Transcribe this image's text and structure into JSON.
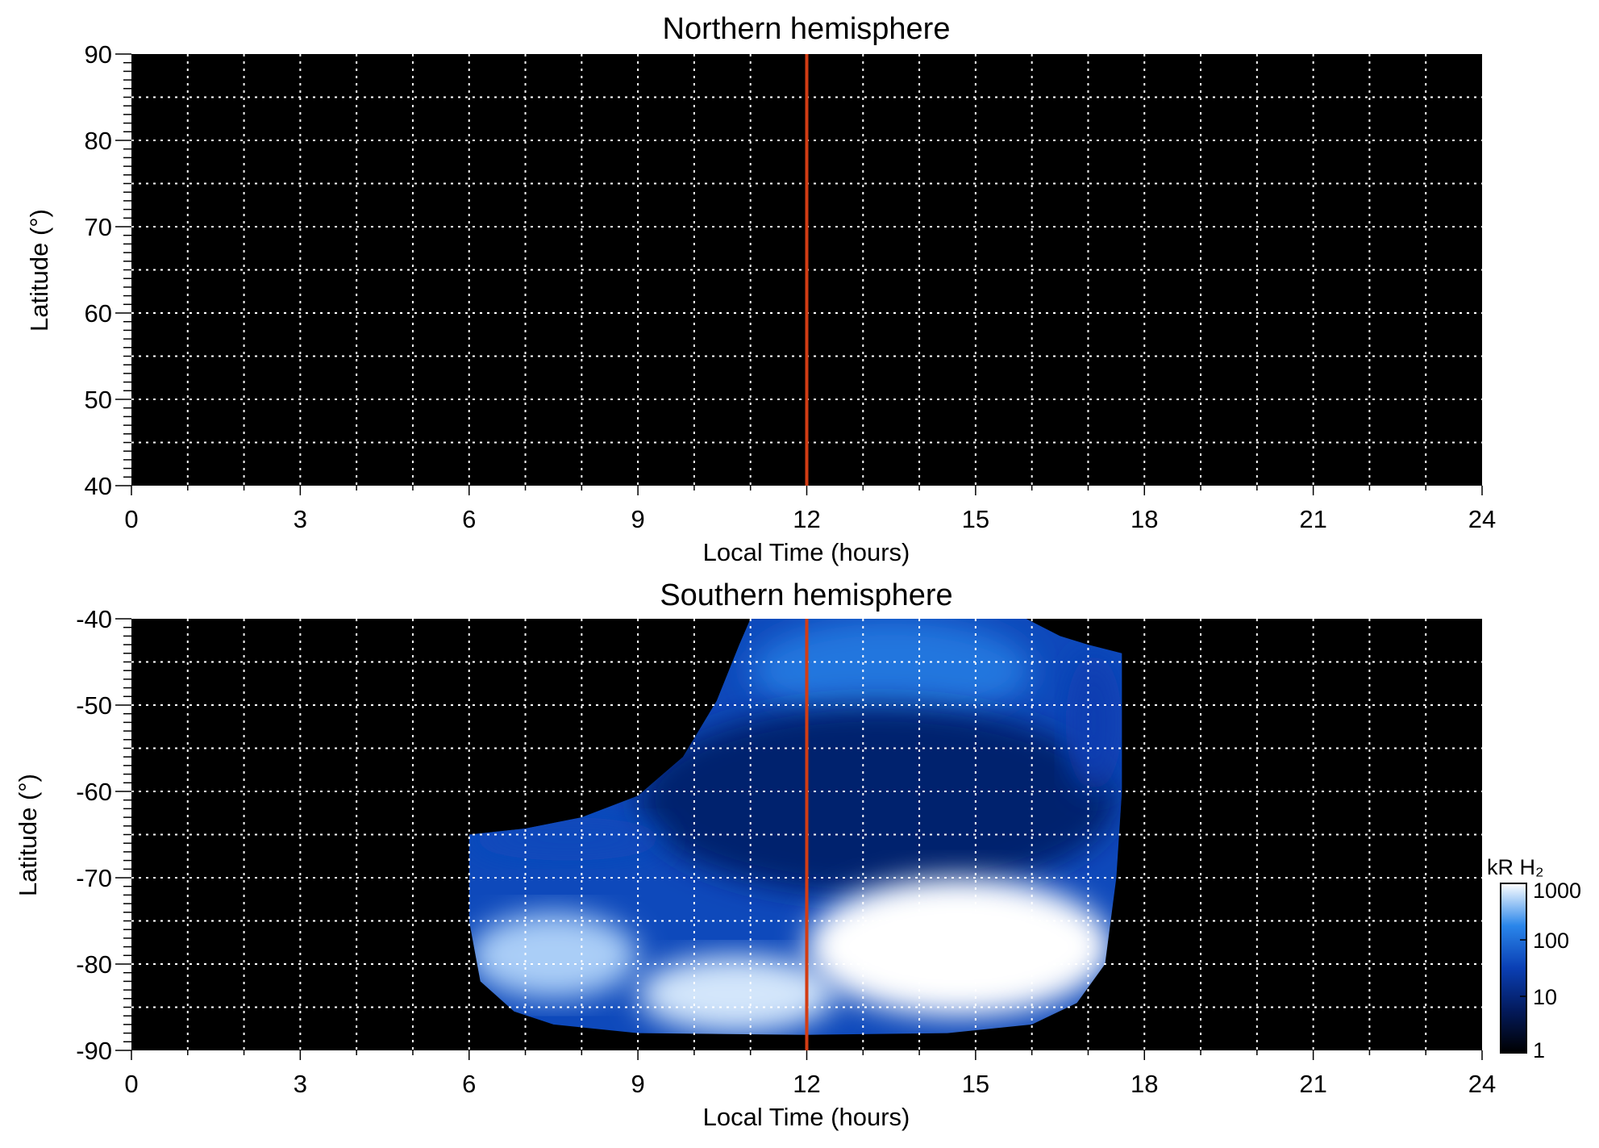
{
  "chart_data": [
    {
      "type": "heatmap",
      "title": "Northern hemisphere",
      "xlabel": "Local Time (hours)",
      "ylabel": "Latitude (°)",
      "xlim": [
        0,
        24
      ],
      "ylim": [
        40,
        90
      ],
      "x_ticks": [
        0,
        3,
        6,
        9,
        12,
        15,
        18,
        21,
        24
      ],
      "y_ticks": [
        40,
        50,
        60,
        70,
        80,
        90
      ],
      "x_tick_labels": [
        "0",
        "3",
        "6",
        "9",
        "12",
        "15",
        "18",
        "21",
        "24"
      ],
      "y_tick_labels": [
        "40",
        "50",
        "60",
        "70",
        "80",
        "90"
      ],
      "grid": true,
      "grid_x_step": 1,
      "grid_y_step": 5,
      "reference_line": {
        "x": 12,
        "color": "#d23c14"
      },
      "background": "#000000",
      "emission": "none"
    },
    {
      "type": "heatmap",
      "title": "Southern hemisphere",
      "xlabel": "Local Time (hours)",
      "ylabel": "Latitude (°)",
      "xlim": [
        0,
        24
      ],
      "ylim": [
        -90,
        -40
      ],
      "x_ticks": [
        0,
        3,
        6,
        9,
        12,
        15,
        18,
        21,
        24
      ],
      "y_ticks": [
        -90,
        -80,
        -70,
        -60,
        -50,
        -40
      ],
      "x_tick_labels": [
        "0",
        "3",
        "6",
        "9",
        "12",
        "15",
        "18",
        "21",
        "24"
      ],
      "y_tick_labels": [
        "-90",
        "-80",
        "-70",
        "-60",
        "-50",
        "-40"
      ],
      "grid": true,
      "grid_x_step": 1,
      "grid_y_step": 5,
      "reference_line": {
        "x": 12,
        "color": "#d23c14"
      },
      "background": "#000000",
      "coverage_boundary": [
        [
          6.0,
          -65.0
        ],
        [
          7.0,
          -64.3
        ],
        [
          8.0,
          -63.0
        ],
        [
          9.0,
          -60.5
        ],
        [
          9.8,
          -56.0
        ],
        [
          10.4,
          -49.5
        ],
        [
          10.8,
          -43.0
        ],
        [
          11.0,
          -40.0
        ],
        [
          15.9,
          -40.0
        ],
        [
          16.5,
          -42.0
        ],
        [
          17.0,
          -43.0
        ],
        [
          17.6,
          -44.0
        ],
        [
          17.6,
          -60.0
        ],
        [
          17.5,
          -70.0
        ],
        [
          17.3,
          -80.0
        ],
        [
          16.8,
          -84.5
        ],
        [
          16.0,
          -87.0
        ],
        [
          14.5,
          -88.0
        ],
        [
          12.0,
          -88.2
        ],
        [
          9.0,
          -88.0
        ],
        [
          7.5,
          -87.0
        ],
        [
          6.8,
          -85.5
        ],
        [
          6.2,
          -82.0
        ],
        [
          6.0,
          -75.0
        ]
      ],
      "intensity_regions": [
        {
          "lt": [
            11.0,
            16.0
          ],
          "lat": [
            -52,
            -40
          ],
          "level_kR": 120
        },
        {
          "lt": [
            9.0,
            17.5
          ],
          "lat": [
            -72,
            -50
          ],
          "level_kR": 8
        },
        {
          "lt": [
            6.0,
            9.5
          ],
          "lat": [
            -68,
            -63
          ],
          "level_kR": 40
        },
        {
          "lt": [
            6.0,
            9.0
          ],
          "lat": [
            -84,
            -74
          ],
          "level_kR": 500
        },
        {
          "lt": [
            9.0,
            12.5
          ],
          "lat": [
            -88,
            -79
          ],
          "level_kR": 700
        },
        {
          "lt": [
            12.0,
            17.4
          ],
          "lat": [
            -86,
            -70
          ],
          "level_kR": 1000
        },
        {
          "lt": [
            16.6,
            17.6
          ],
          "lat": [
            -60,
            -44
          ],
          "level_kR": 30
        }
      ],
      "colorbar": {
        "label": "kR H₂",
        "scale": "log",
        "range": [
          1,
          1000
        ],
        "ticks": [
          1,
          10,
          100,
          1000
        ],
        "tick_labels": [
          "1",
          "10",
          "100",
          "1000"
        ],
        "colors": [
          "#000000",
          "#031a5c",
          "#0a3fb4",
          "#2a86ea",
          "#ffffff"
        ]
      }
    }
  ]
}
